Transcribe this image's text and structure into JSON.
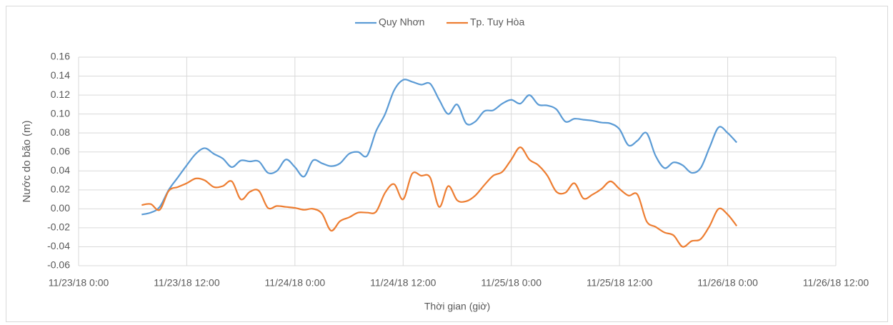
{
  "chart_data": {
    "type": "line",
    "y_label": "Nước do bão (m)",
    "x_label": "Thời gian (giờ)",
    "xlim": [
      "11/23/18 0:00",
      "11/26/18 12:00"
    ],
    "xticks": [
      "11/23/18 0:00",
      "11/23/18 12:00",
      "11/24/18 0:00",
      "11/24/18 12:00",
      "11/25/18 0:00",
      "11/25/18 12:00",
      "11/26/18 0:00",
      "11/26/18 12:00"
    ],
    "ylim": [
      -0.06,
      0.16
    ],
    "yticks": [
      {
        "value": -0.06,
        "label": "-0.06"
      },
      {
        "value": -0.04,
        "label": "-0.04"
      },
      {
        "value": -0.02,
        "label": "-0.02"
      },
      {
        "value": 0,
        "label": "0.00"
      },
      {
        "value": 0.02,
        "label": "0.02"
      },
      {
        "value": 0.04,
        "label": "0.04"
      },
      {
        "value": 0.06,
        "label": "0.06"
      },
      {
        "value": 0.08,
        "label": "0.08"
      },
      {
        "value": 0.1,
        "label": "0.10"
      },
      {
        "value": 0.12,
        "label": "0.12"
      },
      {
        "value": 0.14,
        "label": "0.14"
      },
      {
        "value": 0.16,
        "label": "0.16"
      }
    ],
    "grid": true,
    "legend": "top",
    "x": [
      "11/23/18 7:00",
      "11/23/18 8:00",
      "11/23/18 9:00",
      "11/23/18 10:00",
      "11/23/18 11:00",
      "11/23/18 12:00",
      "11/23/18 13:00",
      "11/23/18 14:00",
      "11/23/18 15:00",
      "11/23/18 16:00",
      "11/23/18 17:00",
      "11/23/18 18:00",
      "11/23/18 19:00",
      "11/23/18 20:00",
      "11/23/18 21:00",
      "11/23/18 22:00",
      "11/23/18 23:00",
      "11/24/18 0:00",
      "11/24/18 1:00",
      "11/24/18 2:00",
      "11/24/18 3:00",
      "11/24/18 4:00",
      "11/24/18 5:00",
      "11/24/18 6:00",
      "11/24/18 7:00",
      "11/24/18 8:00",
      "11/24/18 9:00",
      "11/24/18 10:00",
      "11/24/18 11:00",
      "11/24/18 12:00",
      "11/24/18 13:00",
      "11/24/18 14:00",
      "11/24/18 15:00",
      "11/24/18 16:00",
      "11/24/18 17:00",
      "11/24/18 18:00",
      "11/24/18 19:00",
      "11/24/18 20:00",
      "11/24/18 21:00",
      "11/24/18 22:00",
      "11/24/18 23:00",
      "11/25/18 0:00",
      "11/25/18 1:00",
      "11/25/18 2:00",
      "11/25/18 3:00",
      "11/25/18 4:00",
      "11/25/18 5:00",
      "11/25/18 6:00",
      "11/25/18 7:00",
      "11/25/18 8:00",
      "11/25/18 9:00",
      "11/25/18 10:00",
      "11/25/18 11:00",
      "11/25/18 12:00",
      "11/25/18 13:00",
      "11/25/18 14:00",
      "11/25/18 15:00",
      "11/25/18 16:00",
      "11/25/18 17:00",
      "11/25/18 18:00",
      "11/25/18 19:00",
      "11/25/18 20:00",
      "11/25/18 21:00",
      "11/25/18 22:00",
      "11/25/18 23:00",
      "11/26/18 0:00",
      "11/26/18 1:00"
    ],
    "series": [
      {
        "name": "Quy Nhơn",
        "color": "#5b9bd5",
        "values": [
          -0.006,
          -0.004,
          0.002,
          0.02,
          0.033,
          0.046,
          0.058,
          0.064,
          0.058,
          0.053,
          0.044,
          0.051,
          0.05,
          0.05,
          0.038,
          0.04,
          0.052,
          0.044,
          0.034,
          0.051,
          0.048,
          0.045,
          0.048,
          0.058,
          0.06,
          0.056,
          0.082,
          0.1,
          0.125,
          0.136,
          0.134,
          0.131,
          0.132,
          0.115,
          0.1,
          0.11,
          0.09,
          0.092,
          0.103,
          0.104,
          0.111,
          0.115,
          0.111,
          0.12,
          0.11,
          0.109,
          0.105,
          0.092,
          0.095,
          0.094,
          0.093,
          0.091,
          0.09,
          0.084,
          0.067,
          0.072,
          0.08,
          0.056,
          0.043,
          0.049,
          0.046,
          0.038,
          0.043,
          0.065,
          0.086,
          0.08,
          0.07
        ]
      },
      {
        "name": "Tp. Tuy Hòa",
        "color": "#ed7d31",
        "values": [
          0.004,
          0.005,
          -0.001,
          0.019,
          0.023,
          0.027,
          0.032,
          0.03,
          0.023,
          0.024,
          0.029,
          0.01,
          0.018,
          0.019,
          0.001,
          0.003,
          0.002,
          0.001,
          -0.001,
          0,
          -0.005,
          -0.023,
          -0.013,
          -0.009,
          -0.004,
          -0.004,
          -0.003,
          0.017,
          0.026,
          0.01,
          0.037,
          0.035,
          0.033,
          0.002,
          0.024,
          0.009,
          0.008,
          0.014,
          0.025,
          0.035,
          0.039,
          0.052,
          0.065,
          0.052,
          0.046,
          0.035,
          0.018,
          0.017,
          0.027,
          0.011,
          0.015,
          0.021,
          0.029,
          0.021,
          0.014,
          0.015,
          -0.013,
          -0.019,
          -0.025,
          -0.028,
          -0.04,
          -0.034,
          -0.032,
          -0.018,
          0,
          -0.006,
          -0.018
        ]
      }
    ]
  }
}
